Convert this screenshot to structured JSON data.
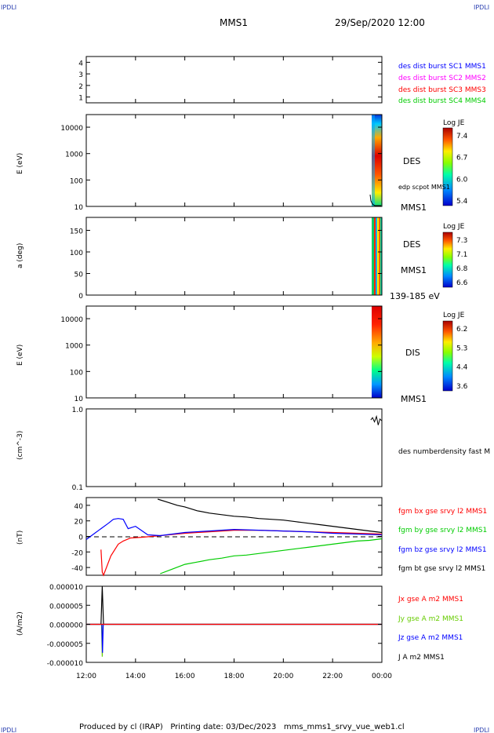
{
  "header": {
    "corner_tl": "IPDLI",
    "corner_tr": "IPDLI",
    "corner_bl": "IPDLI",
    "corner_br": "IPDLI",
    "title": "MMS1",
    "datetime": "29/Sep/2020 12:00"
  },
  "footer": {
    "text": "Produced by cl (IRAP)   Printing date: 03/Dec/2023   mms_mms1_srvy_vue_web1.cl"
  },
  "colors": {
    "mms1": "#0000ff",
    "mms2": "#ff00ff",
    "mms3": "#ff0000",
    "mms4": "#00cc00",
    "bx": "#ff0000",
    "by": "#00dd00",
    "bz": "#0000ff",
    "bt": "#000000"
  },
  "x_axis": {
    "tick_labels": [
      "12:00",
      "14:00",
      "16:00",
      "18:00",
      "20:00",
      "22:00",
      "00:00"
    ],
    "range_hours": [
      12,
      24
    ]
  },
  "panels": {
    "p1": {
      "y_ticks": [
        "4",
        "3",
        "2",
        "1"
      ],
      "legend": [
        {
          "text": "des dist burst SC1 MMS1",
          "color": "#0000ff"
        },
        {
          "text": "des dist burst SC2 MMS2",
          "color": "#ff00ff"
        },
        {
          "text": "des dist burst SC3 MMS3",
          "color": "#ff0000"
        },
        {
          "text": "des dist burst SC4 MMS4",
          "color": "#00cc00"
        }
      ]
    },
    "p2": {
      "ylabel": "E (eV)",
      "y_ticks": [
        "10000",
        "1000",
        "100",
        "10"
      ],
      "colorbar_title": "Log JE",
      "colorbar_ticks": [
        "7.4",
        "6.7",
        "6.0",
        "5.4"
      ],
      "label1": "DES",
      "label2": "edp scpot MMS1",
      "label3": "MMS1"
    },
    "p3": {
      "ylabel": "a (deg)",
      "y_ticks": [
        "150",
        "100",
        "50",
        "0"
      ],
      "colorbar_title": "Log JE",
      "colorbar_ticks": [
        "7.3",
        "7.1",
        "6.8",
        "6.6"
      ],
      "label1": "DES",
      "label2": "MMS1",
      "label3": "139-185 eV"
    },
    "p4": {
      "ylabel": "E (eV)",
      "y_ticks": [
        "10000",
        "1000",
        "100",
        "10"
      ],
      "colorbar_title": "Log JE",
      "colorbar_ticks": [
        "6.2",
        "5.3",
        "4.4",
        "3.6"
      ],
      "label1": "DIS",
      "label2": "MMS1"
    },
    "p5": {
      "ylabel": "(cm^-3)",
      "y_ticks": [
        "1.0",
        "0.1"
      ],
      "legend": "des numberdensity fast M"
    },
    "p6": {
      "ylabel": "(nT)",
      "y_ticks": [
        "40",
        "20",
        "0",
        "-20",
        "-40"
      ],
      "legend": [
        {
          "text": "fgm bx gse srvy l2 MMS1",
          "color": "#ff0000"
        },
        {
          "text": "fgm by gse srvy l2 MMS1",
          "color": "#00cc00"
        },
        {
          "text": "fgm bz gse srvy l2 MMS1",
          "color": "#0000ff"
        },
        {
          "text": "fgm bt gse srvy l2 MMS1",
          "color": "#000000"
        }
      ]
    },
    "p7": {
      "ylabel": "(A/m2)",
      "y_ticks": [
        "0.000010",
        "0.000005",
        "0.000000",
        "-0.000005",
        "-0.000010"
      ],
      "legend": [
        {
          "text": "Jx gse A m2 MMS1",
          "color": "#ff0000"
        },
        {
          "text": "Jy gse A m2 MMS1",
          "color": "#66cc00"
        },
        {
          "text": "Jz gse A m2 MMS1",
          "color": "#0000ff"
        },
        {
          "text": "J A m2 MMS1",
          "color": "#000000"
        }
      ]
    }
  },
  "chart_data": [
    {
      "type": "line",
      "panel": "p1",
      "ylim": [
        0.5,
        4.5
      ],
      "yticks": [
        4,
        3,
        2,
        1
      ]
    },
    {
      "type": "heatmap",
      "panel": "p2",
      "ylabel": "E (eV)",
      "yscale": "log",
      "ylim": [
        10,
        30000
      ],
      "yticks": [
        10000,
        1000,
        100,
        10
      ],
      "data_time_range_hours": [
        23.55,
        24
      ],
      "colorbar_range": [
        5.4,
        7.4
      ],
      "overlay_label": "edp scpot MMS1"
    },
    {
      "type": "heatmap",
      "panel": "p3",
      "ylabel": "a (deg)",
      "ylim": [
        0,
        180
      ],
      "yticks": [
        150,
        100,
        50,
        0
      ],
      "data_time_range_hours": [
        23.5,
        24
      ],
      "colorbar_range": [
        6.6,
        7.3
      ],
      "energy_range": "139-185 eV"
    },
    {
      "type": "heatmap",
      "panel": "p4",
      "ylabel": "E (eV)",
      "yscale": "log",
      "ylim": [
        10,
        30000
      ],
      "yticks": [
        10000,
        1000,
        100,
        10
      ],
      "data_time_range_hours": [
        23.55,
        24
      ],
      "colorbar_range": [
        3.6,
        6.2
      ]
    },
    {
      "type": "line",
      "panel": "p5",
      "ylabel": "(cm^-3)",
      "yscale": "log",
      "ylim": [
        0.1,
        1.0
      ],
      "series": [
        {
          "name": "des numberdensity fast M",
          "color": "#000000",
          "x": [
            23.55,
            23.62,
            23.7,
            23.78,
            23.85,
            23.92,
            24.0
          ],
          "values": [
            0.72,
            0.77,
            0.68,
            0.8,
            0.62,
            0.74,
            0.7
          ]
        }
      ]
    },
    {
      "type": "line",
      "panel": "p6",
      "ylabel": "(nT)",
      "ylim": [
        -50,
        50
      ],
      "yticks": [
        40,
        20,
        0,
        -20,
        -40
      ],
      "reference_line": 0,
      "series": [
        {
          "name": "fgm bx gse srvy l2 MMS1",
          "color": "#ff0000",
          "x": [
            12.6,
            12.65,
            12.7,
            13.0,
            13.3,
            13.5,
            13.8,
            14.3,
            15.0,
            16.0,
            17.0,
            18.0,
            19.0,
            20.0,
            21.0,
            22.0,
            23.0,
            24.0
          ],
          "values": [
            -17,
            -46,
            -50,
            -25,
            -10,
            -6,
            -2,
            -1,
            1,
            4,
            6,
            8,
            8,
            7,
            6,
            5,
            4,
            3
          ]
        },
        {
          "name": "fgm by gse srvy l2 MMS1",
          "color": "#00cc00",
          "x": [
            15.0,
            15.5,
            16.0,
            16.5,
            17.0,
            17.5,
            18.0,
            18.5,
            19.0,
            19.5,
            20.0,
            20.5,
            21.0,
            21.5,
            22.0,
            22.5,
            23.0,
            23.5,
            24.0
          ],
          "values": [
            -48,
            -42,
            -36,
            -33,
            -30,
            -28,
            -25,
            -24,
            -22,
            -20,
            -18,
            -16,
            -14,
            -12,
            -10,
            -8,
            -6,
            -5,
            -3
          ]
        },
        {
          "name": "fgm bz gse srvy l2 MMS1",
          "color": "#0000ff",
          "x": [
            12.0,
            12.3,
            12.6,
            12.9,
            13.1,
            13.3,
            13.5,
            13.7,
            14.0,
            14.5,
            15.0,
            16.0,
            17.0,
            18.0,
            19.0,
            20.0,
            21.0,
            22.0,
            23.0,
            24.0
          ],
          "values": [
            -4,
            3,
            10,
            17,
            22,
            23,
            22,
            10,
            13,
            2,
            1,
            5,
            7,
            9,
            8,
            7,
            6,
            4,
            3,
            2
          ]
        },
        {
          "name": "fgm bt gse srvy l2 MMS1",
          "color": "#000000",
          "x": [
            14.9,
            15.3,
            15.7,
            16.0,
            16.5,
            17.0,
            17.5,
            18.0,
            18.5,
            19.0,
            19.5,
            20.0,
            20.5,
            21.0,
            21.5,
            22.0,
            22.5,
            23.0,
            23.5,
            24.0
          ],
          "values": [
            48,
            44,
            40,
            38,
            33,
            30,
            28,
            26,
            25,
            23,
            22,
            21,
            19,
            17,
            15,
            13,
            11,
            9,
            7,
            5
          ]
        }
      ]
    },
    {
      "type": "line",
      "panel": "p7",
      "ylabel": "(A/m2)",
      "ylim": [
        -1e-05,
        1e-05
      ],
      "yticks": [
        1e-05,
        5e-06,
        0.0,
        -5e-06,
        -1e-05
      ],
      "series": [
        {
          "name": "J A m2 MMS1",
          "color": "#000000",
          "x": [
            12.0,
            12.6,
            12.65,
            12.7,
            14.0,
            24.0
          ],
          "values": [
            0.0,
            0.0,
            1e-05,
            0.0,
            0.0,
            0.0
          ]
        },
        {
          "name": "Jy gse A m2 MMS1",
          "color": "#66cc00",
          "x": [
            12.0,
            12.62,
            12.65,
            12.68,
            24.0
          ],
          "values": [
            0.0,
            0.0,
            -8.5e-06,
            0.0,
            0.0
          ]
        },
        {
          "name": "Jz gse A m2 MMS1",
          "color": "#0000ff",
          "x": [
            12.0,
            12.63,
            12.66,
            12.69,
            24.0
          ],
          "values": [
            0.0,
            0.0,
            -7.5e-06,
            0.0,
            0.0
          ]
        },
        {
          "name": "Jx gse A m2 MMS1",
          "color": "#ff0000",
          "x": [
            12.0,
            24.0
          ],
          "values": [
            0.0,
            0.0
          ]
        }
      ]
    }
  ]
}
